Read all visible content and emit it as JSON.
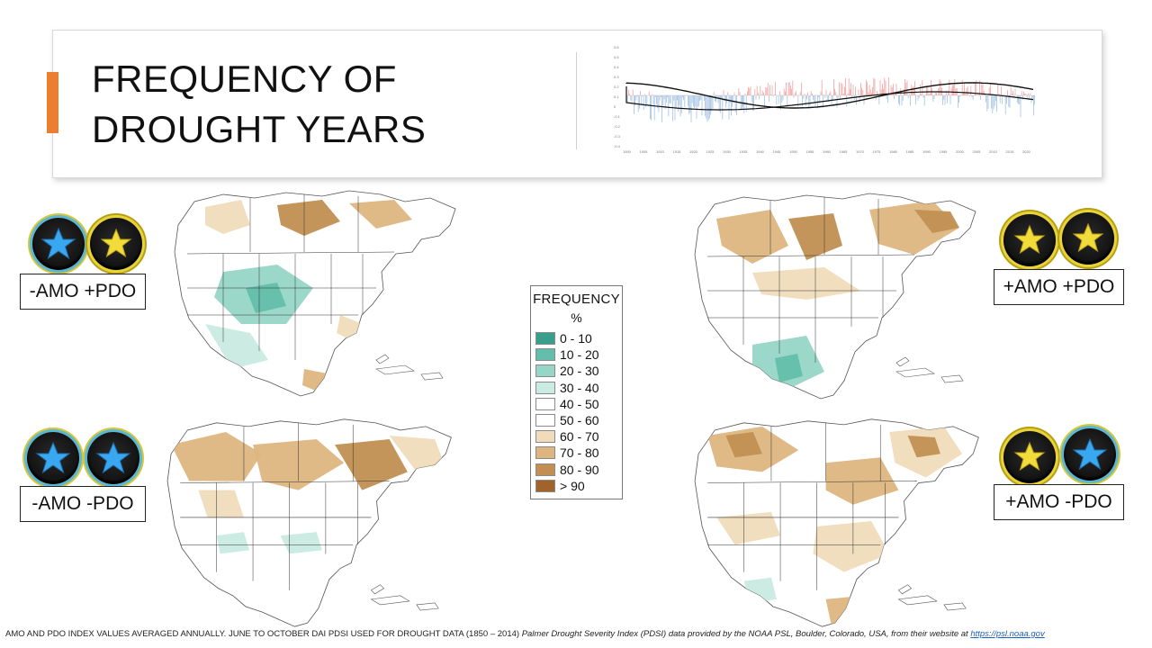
{
  "slide": {
    "title_line1": "FREQUENCY OF",
    "title_line2": "DROUGHT YEARS",
    "accent_color": "#ed7d31"
  },
  "index_chart": {
    "y_ticks": [
      "0.6",
      "0.5",
      "0.4",
      "0.3",
      "0.2",
      "0.1",
      "0",
      "-0.1",
      "-0.2",
      "-0.3",
      "-0.4"
    ],
    "x_ticks": [
      "1900",
      "1905",
      "1910",
      "1915",
      "1920",
      "1925",
      "1930",
      "1935",
      "1940",
      "1945",
      "1950",
      "1955",
      "1960",
      "1965",
      "1970",
      "1975",
      "1980",
      "1985",
      "1990",
      "1995",
      "2000",
      "2005",
      "2010",
      "2015",
      "2020"
    ],
    "positive_color": "#f08c8c",
    "negative_color": "#8fb4dc",
    "curve_color": "#111111"
  },
  "legend": {
    "title": "FREQUENCY",
    "unit": "%",
    "items": [
      {
        "label": "0 - 10",
        "color": "#3a9e8c"
      },
      {
        "label": "10 - 20",
        "color": "#63bfab"
      },
      {
        "label": "20 - 30",
        "color": "#97d6c6"
      },
      {
        "label": "30 - 40",
        "color": "#c9ebe2"
      },
      {
        "label": "40 - 50",
        "color": "#ffffff"
      },
      {
        "label": "50 - 60",
        "color": "#ffffff"
      },
      {
        "label": "60 - 70",
        "color": "#f0dcbb"
      },
      {
        "label": "70 - 80",
        "color": "#ddb580"
      },
      {
        "label": "80 - 90",
        "color": "#c18f52"
      },
      {
        "label": "> 90",
        "color": "#a0632a"
      }
    ]
  },
  "panels": [
    {
      "label": "-AMO +PDO",
      "badges": [
        "blue-star",
        "yellow-star"
      ]
    },
    {
      "label": "+AMO +PDO",
      "badges": [
        "yellow-star",
        "yellow-star"
      ]
    },
    {
      "label": "-AMO -PDO",
      "badges": [
        "blue-star",
        "blue-star"
      ]
    },
    {
      "label": "+AMO -PDO",
      "badges": [
        "yellow-star",
        "blue-star"
      ]
    }
  ],
  "footnote": {
    "part1": "AMO AND PDO INDEX VALUES AVERAGED ANNUALLY. JUNE TO OCTOBER DAI PDSI USED FOR DROUGHT DATA (1850 – 2014) ",
    "part2": "Palmer Drought Severity Index (PDSI) data provided by the NOAA PSL, Boulder, Colorado, USA, from their website at ",
    "link": "https://psl.noaa.gov"
  }
}
